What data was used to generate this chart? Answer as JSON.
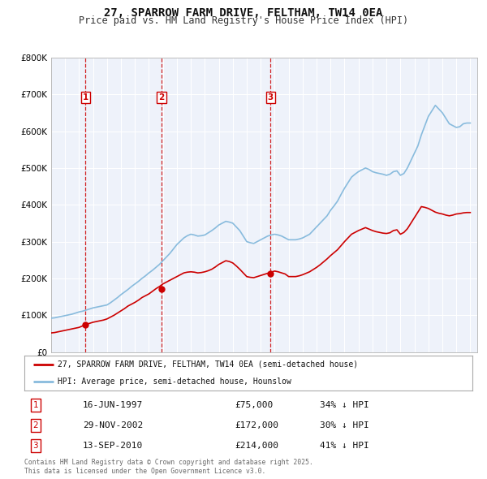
{
  "title": "27, SPARROW FARM DRIVE, FELTHAM, TW14 0EA",
  "subtitle": "Price paid vs. HM Land Registry's House Price Index (HPI)",
  "title_fontsize": 10,
  "subtitle_fontsize": 8.5,
  "background_color": "#ffffff",
  "plot_bg_color": "#eef2fa",
  "grid_color": "#ffffff",
  "ylim": [
    0,
    800000
  ],
  "yticks": [
    0,
    100000,
    200000,
    300000,
    400000,
    500000,
    600000,
    700000,
    800000
  ],
  "ytick_labels": [
    "£0",
    "£100K",
    "£200K",
    "£300K",
    "£400K",
    "£500K",
    "£600K",
    "£700K",
    "£800K"
  ],
  "sale_color": "#cc0000",
  "hpi_color": "#88bbdd",
  "sale_label": "27, SPARROW FARM DRIVE, FELTHAM, TW14 0EA (semi-detached house)",
  "hpi_label": "HPI: Average price, semi-detached house, Hounslow",
  "vline_color": "#cc0000",
  "transactions": [
    {
      "num": 1,
      "date_label": "16-JUN-1997",
      "price": "£75,000",
      "hpi": "34% ↓ HPI",
      "year": 1997.46,
      "value": 75000
    },
    {
      "num": 2,
      "date_label": "29-NOV-2002",
      "price": "£172,000",
      "hpi": "30% ↓ HPI",
      "year": 2002.91,
      "value": 172000
    },
    {
      "num": 3,
      "date_label": "13-SEP-2010",
      "price": "£214,000",
      "hpi": "41% ↓ HPI",
      "year": 2010.7,
      "value": 214000
    }
  ],
  "hpi_data": {
    "years": [
      1995.0,
      1995.25,
      1995.5,
      1995.75,
      1996.0,
      1996.25,
      1996.5,
      1996.75,
      1997.0,
      1997.25,
      1997.5,
      1997.75,
      1998.0,
      1998.25,
      1998.5,
      1998.75,
      1999.0,
      1999.25,
      1999.5,
      1999.75,
      2000.0,
      2000.25,
      2000.5,
      2000.75,
      2001.0,
      2001.25,
      2001.5,
      2001.75,
      2002.0,
      2002.25,
      2002.5,
      2002.75,
      2003.0,
      2003.25,
      2003.5,
      2003.75,
      2004.0,
      2004.25,
      2004.5,
      2004.75,
      2005.0,
      2005.25,
      2005.5,
      2005.75,
      2006.0,
      2006.25,
      2006.5,
      2006.75,
      2007.0,
      2007.25,
      2007.5,
      2007.75,
      2008.0,
      2008.25,
      2008.5,
      2008.75,
      2009.0,
      2009.25,
      2009.5,
      2009.75,
      2010.0,
      2010.25,
      2010.5,
      2010.75,
      2011.0,
      2011.25,
      2011.5,
      2011.75,
      2012.0,
      2012.25,
      2012.5,
      2012.75,
      2013.0,
      2013.25,
      2013.5,
      2013.75,
      2014.0,
      2014.25,
      2014.5,
      2014.75,
      2015.0,
      2015.25,
      2015.5,
      2015.75,
      2016.0,
      2016.25,
      2016.5,
      2016.75,
      2017.0,
      2017.25,
      2017.5,
      2017.75,
      2018.0,
      2018.25,
      2018.5,
      2018.75,
      2019.0,
      2019.25,
      2019.5,
      2019.75,
      2020.0,
      2020.25,
      2020.5,
      2020.75,
      2021.0,
      2021.25,
      2021.5,
      2021.75,
      2022.0,
      2022.25,
      2022.5,
      2022.75,
      2023.0,
      2023.25,
      2023.5,
      2023.75,
      2024.0,
      2024.25,
      2024.5,
      2024.75,
      2025.0
    ],
    "values": [
      92000,
      93000,
      95000,
      97000,
      99000,
      101000,
      103000,
      106000,
      109000,
      111000,
      114000,
      117000,
      120000,
      122000,
      124000,
      126000,
      128000,
      134000,
      141000,
      148000,
      156000,
      163000,
      170000,
      178000,
      185000,
      192000,
      200000,
      207000,
      215000,
      222000,
      230000,
      238000,
      248000,
      258000,
      268000,
      280000,
      292000,
      301000,
      310000,
      316000,
      320000,
      318000,
      315000,
      316000,
      318000,
      324000,
      330000,
      337000,
      345000,
      350000,
      355000,
      353000,
      350000,
      340000,
      330000,
      315000,
      300000,
      297000,
      295000,
      300000,
      305000,
      310000,
      315000,
      318000,
      320000,
      318000,
      315000,
      310000,
      305000,
      305000,
      305000,
      307000,
      310000,
      315000,
      320000,
      330000,
      340000,
      350000,
      360000,
      370000,
      385000,
      397000,
      410000,
      428000,
      445000,
      460000,
      475000,
      483000,
      490000,
      495000,
      500000,
      496000,
      490000,
      487000,
      485000,
      483000,
      480000,
      483000,
      490000,
      492000,
      480000,
      485000,
      500000,
      520000,
      540000,
      560000,
      590000,
      615000,
      640000,
      655000,
      670000,
      660000,
      650000,
      635000,
      620000,
      615000,
      610000,
      612000,
      620000,
      622000,
      622000
    ]
  },
  "sale_data": {
    "years": [
      1995.0,
      1995.25,
      1995.5,
      1995.75,
      1996.0,
      1996.25,
      1996.5,
      1996.75,
      1997.0,
      1997.25,
      1997.5,
      1997.75,
      1998.0,
      1998.25,
      1998.5,
      1998.75,
      1999.0,
      1999.25,
      1999.5,
      1999.75,
      2000.0,
      2000.25,
      2000.5,
      2000.75,
      2001.0,
      2001.25,
      2001.5,
      2001.75,
      2002.0,
      2002.25,
      2002.5,
      2002.75,
      2003.0,
      2003.25,
      2003.5,
      2003.75,
      2004.0,
      2004.25,
      2004.5,
      2004.75,
      2005.0,
      2005.25,
      2005.5,
      2005.75,
      2006.0,
      2006.25,
      2006.5,
      2006.75,
      2007.0,
      2007.25,
      2007.5,
      2007.75,
      2008.0,
      2008.25,
      2008.5,
      2008.75,
      2009.0,
      2009.25,
      2009.5,
      2009.75,
      2010.0,
      2010.25,
      2010.5,
      2010.75,
      2011.0,
      2011.25,
      2011.5,
      2011.75,
      2012.0,
      2012.25,
      2012.5,
      2012.75,
      2013.0,
      2013.25,
      2013.5,
      2013.75,
      2014.0,
      2014.25,
      2014.5,
      2014.75,
      2015.0,
      2015.25,
      2015.5,
      2015.75,
      2016.0,
      2016.25,
      2016.5,
      2016.75,
      2017.0,
      2017.25,
      2017.5,
      2017.75,
      2018.0,
      2018.25,
      2018.5,
      2018.75,
      2019.0,
      2019.25,
      2019.5,
      2019.75,
      2020.0,
      2020.25,
      2020.5,
      2020.75,
      2021.0,
      2021.25,
      2021.5,
      2021.75,
      2022.0,
      2022.25,
      2022.5,
      2022.75,
      2023.0,
      2023.25,
      2023.5,
      2023.75,
      2024.0,
      2024.25,
      2024.5,
      2024.75,
      2025.0
    ],
    "values": [
      52000,
      53000,
      55000,
      57000,
      59000,
      61000,
      63000,
      65000,
      67000,
      71000,
      75000,
      78000,
      81000,
      83000,
      85000,
      87000,
      90000,
      95000,
      100000,
      106000,
      112000,
      118000,
      125000,
      130000,
      135000,
      141000,
      148000,
      153000,
      158000,
      165000,
      172000,
      178000,
      185000,
      190000,
      195000,
      200000,
      205000,
      210000,
      215000,
      217000,
      218000,
      217000,
      215000,
      216000,
      218000,
      221000,
      225000,
      231000,
      238000,
      243000,
      248000,
      246000,
      242000,
      234000,
      225000,
      215000,
      205000,
      203000,
      202000,
      205000,
      208000,
      211000,
      214000,
      217000,
      220000,
      218000,
      215000,
      212000,
      205000,
      205000,
      205000,
      207000,
      210000,
      214000,
      218000,
      224000,
      230000,
      237000,
      245000,
      253000,
      262000,
      270000,
      278000,
      289000,
      300000,
      310000,
      320000,
      325000,
      330000,
      334000,
      338000,
      334000,
      330000,
      327000,
      325000,
      323000,
      322000,
      324000,
      330000,
      332000,
      320000,
      325000,
      335000,
      350000,
      365000,
      380000,
      395000,
      393000,
      390000,
      385000,
      380000,
      377000,
      375000,
      372000,
      370000,
      372000,
      375000,
      376000,
      378000,
      379000,
      379000
    ]
  },
  "footnote": "Contains HM Land Registry data © Crown copyright and database right 2025.\nThis data is licensed under the Open Government Licence v3.0.",
  "xlim": [
    1995,
    2025.5
  ],
  "xticks": [
    1995,
    1996,
    1997,
    1998,
    1999,
    2000,
    2001,
    2002,
    2003,
    2004,
    2005,
    2006,
    2007,
    2008,
    2009,
    2010,
    2011,
    2012,
    2013,
    2014,
    2015,
    2016,
    2017,
    2018,
    2019,
    2020,
    2021,
    2022,
    2023,
    2024,
    2025
  ]
}
